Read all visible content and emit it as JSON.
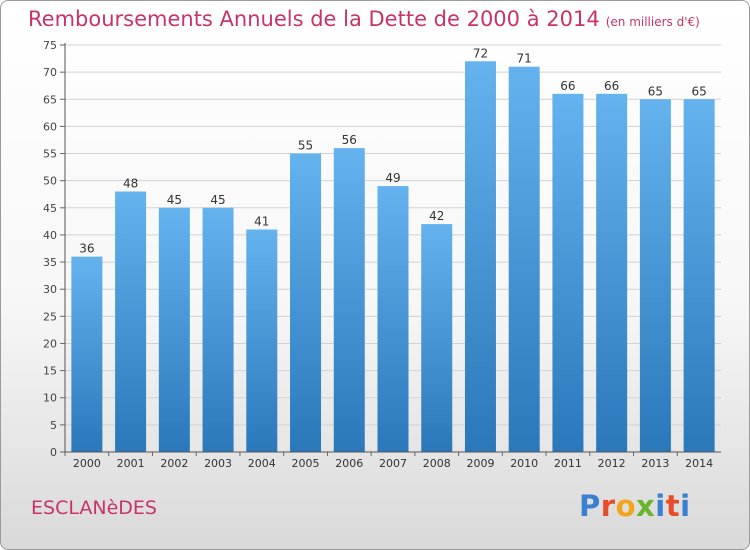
{
  "header": {
    "title": "Remboursements Annuels de la Dette de 2000 à 2014",
    "unit": "(en milliers d'€)"
  },
  "footer": {
    "commune": "ESCLANèDES",
    "logo_letters": [
      "P",
      "r",
      "o",
      "x",
      "i",
      "t",
      "i"
    ],
    "logo_colors": [
      "#3a7fd0",
      "#e64b2a",
      "#f2a51a",
      "#6bb52e",
      "#3a7fd0",
      "#e64b2a",
      "#3a7fd0"
    ]
  },
  "colors": {
    "accent": "#c8336a",
    "bar_top": "#64b2ee",
    "bar_bottom": "#2a78ba",
    "grid": "#d2d2d2"
  },
  "chart_data": {
    "type": "bar",
    "title": "Remboursements Annuels de la Dette de 2000 à 2014",
    "xlabel": "",
    "ylabel": "",
    "ylim": [
      0,
      75
    ],
    "yticks": [
      0,
      5,
      10,
      15,
      20,
      25,
      30,
      35,
      40,
      45,
      50,
      55,
      60,
      65,
      70,
      75
    ],
    "grid": true,
    "categories": [
      "2000",
      "2001",
      "2002",
      "2003",
      "2004",
      "2005",
      "2006",
      "2007",
      "2008",
      "2009",
      "2010",
      "2011",
      "2012",
      "2013",
      "2014"
    ],
    "values": [
      36,
      48,
      45,
      45,
      41,
      55,
      56,
      49,
      42,
      72,
      71,
      66,
      66,
      65,
      65
    ]
  }
}
